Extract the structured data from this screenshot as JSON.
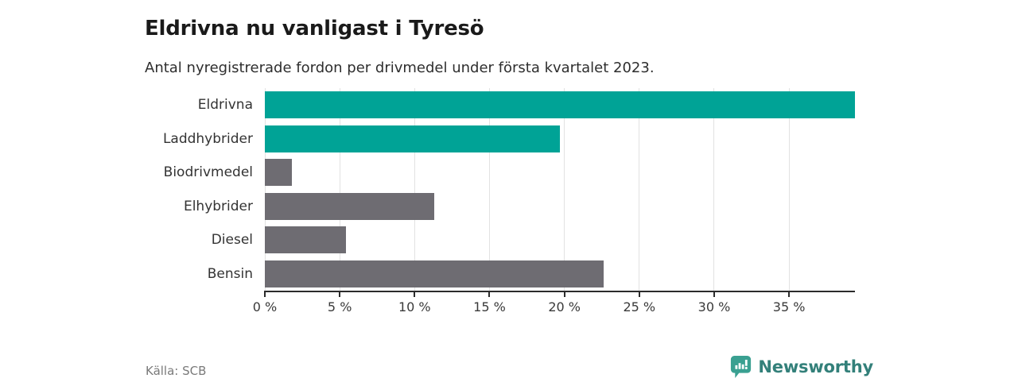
{
  "header": {
    "title": "Eldrivna nu vanligast i Tyresö",
    "subtitle": "Antal nyregistrerade fordon per drivmedel under första kvartalet 2023."
  },
  "chart_data": {
    "type": "bar",
    "orientation": "horizontal",
    "title": "Eldrivna nu vanligast i Tyresö",
    "subtitle": "Antal nyregistrerade fordon per drivmedel under första kvartalet 2023.",
    "categories": [
      "Eldrivna",
      "Laddhybrider",
      "Biodrivmedel",
      "Elhybrider",
      "Diesel",
      "Bensin"
    ],
    "values": [
      39.4,
      19.7,
      1.8,
      11.3,
      5.4,
      22.6
    ],
    "unit": "%",
    "bar_colors": [
      "#00a396",
      "#00a396",
      "#6e6c72",
      "#6e6c72",
      "#6e6c72",
      "#6e6c72"
    ],
    "xlabel": "",
    "ylabel": "",
    "xlim": [
      0,
      39.4
    ],
    "x_ticks": [
      0,
      5,
      10,
      15,
      20,
      25,
      30,
      35
    ],
    "x_tick_labels": [
      "0 %",
      "5 %",
      "10 %",
      "15 %",
      "20 %",
      "25 %",
      "30 %",
      "35 %"
    ],
    "grid": "vertical",
    "legend": "none"
  },
  "footer": {
    "source": "Källa: SCB",
    "brand": "Newsworthy"
  },
  "colors": {
    "accent_teal": "#00a396",
    "bar_gray": "#6e6c72",
    "grid_gray": "#e2e2e2",
    "axis_dark": "#2b2b2b",
    "brand_teal_icon": "#3aa091",
    "brand_teal_text": "#33807a"
  }
}
